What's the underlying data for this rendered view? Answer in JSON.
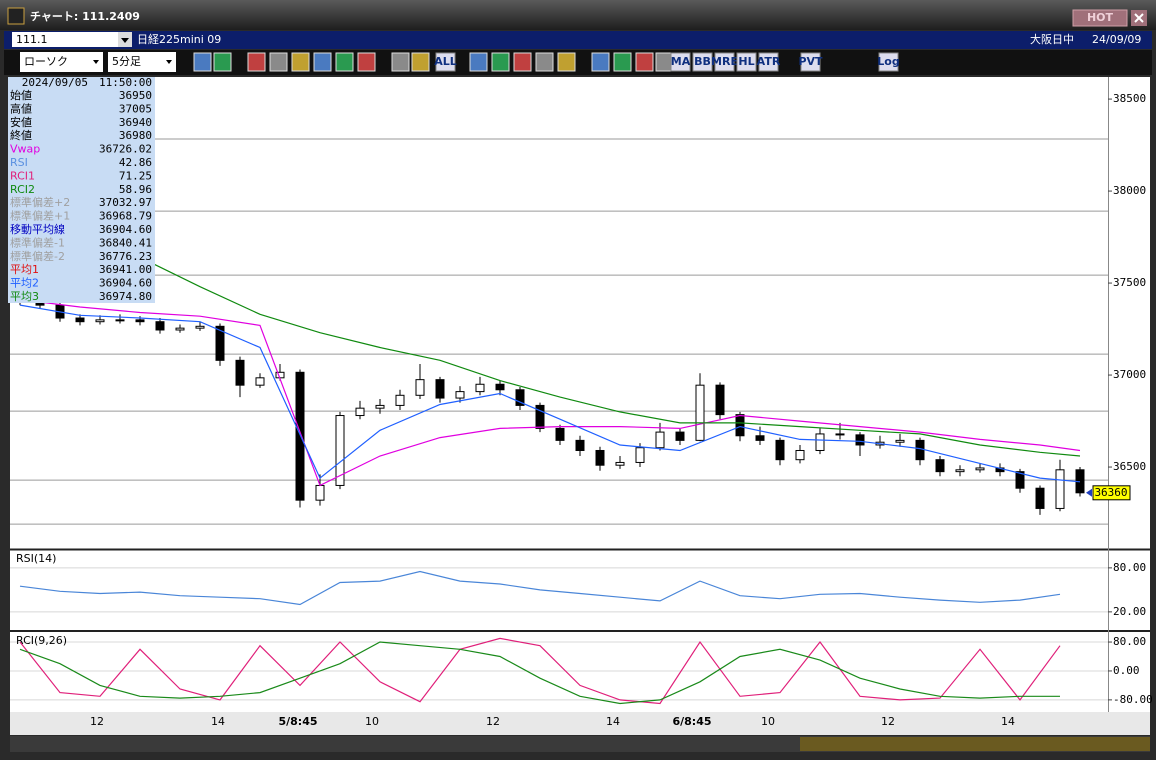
{
  "window": {
    "title": "チャート: 111.2409",
    "hot": "HOT",
    "code": "111.1",
    "instrument": "日経225mini 09",
    "market": "大阪日中",
    "date": "24/09/09"
  },
  "toolbar": {
    "chart_kind": "ローソク",
    "interval": "5分足",
    "buttons": [
      "ALL",
      "MA",
      "BB",
      "MRE",
      "HL",
      "ATR",
      "PVT",
      "Log"
    ]
  },
  "info": {
    "datetime": "2024/09/05　11:50:00",
    "rows": [
      {
        "label": "始値",
        "value": "36950",
        "color": "#000000"
      },
      {
        "label": "高値",
        "value": "37005",
        "color": "#000000"
      },
      {
        "label": "安値",
        "value": "36940",
        "color": "#000000"
      },
      {
        "label": "終値",
        "value": "36980",
        "color": "#000000"
      },
      {
        "label": "Vwap",
        "value": "36726.02",
        "color": "#e000e0"
      },
      {
        "label": "RSI",
        "value": "42.86",
        "color": "#5a90e0"
      },
      {
        "label": "RCI1",
        "value": "71.25",
        "color": "#e0207a"
      },
      {
        "label": "RCI2",
        "value": "58.96",
        "color": "#108a10"
      },
      {
        "label": "標準偏差+2",
        "value": "37032.97",
        "color": "#a0a0a0"
      },
      {
        "label": "標準偏差+1",
        "value": "36968.79",
        "color": "#a0a0a0"
      },
      {
        "label": "移動平均線",
        "value": "36904.60",
        "color": "#0000c0"
      },
      {
        "label": "標準偏差-1",
        "value": "36840.41",
        "color": "#a0a0a0"
      },
      {
        "label": "標準偏差-2",
        "value": "36776.23",
        "color": "#a0a0a0"
      },
      {
        "label": "平均1",
        "value": "36941.00",
        "color": "#e01010"
      },
      {
        "label": "平均2",
        "value": "36904.60",
        "color": "#2060ff"
      },
      {
        "label": "平均3",
        "value": "36974.80",
        "color": "#108a10"
      }
    ]
  },
  "chart_data": [
    {
      "type": "candlestick",
      "up_color": "#ffffff",
      "down_color": "#000000",
      "grid": false,
      "x": [
        0,
        1,
        2,
        3,
        4,
        5,
        6,
        7,
        8,
        9,
        10,
        11,
        12,
        13,
        14,
        15,
        16,
        17,
        18,
        19,
        20,
        21,
        22,
        23,
        24,
        25,
        26,
        27,
        28,
        29,
        30,
        31,
        32,
        33,
        34,
        35,
        36,
        37,
        38,
        39,
        40,
        41,
        42,
        43,
        44,
        45,
        46,
        47,
        48,
        49,
        50,
        51,
        52,
        53
      ],
      "open": [
        37420,
        37408,
        37380,
        37310,
        37290,
        37300,
        37300,
        37290,
        37245,
        37255,
        37265,
        37080,
        36945,
        36985,
        37015,
        36320,
        36400,
        36780,
        36820,
        36835,
        36890,
        36975,
        36875,
        36910,
        36950,
        36920,
        36835,
        36710,
        36645,
        36590,
        36510,
        36525,
        36605,
        36690,
        36645,
        36945,
        36785,
        36670,
        36645,
        36540,
        36590,
        36680,
        36675,
        36620,
        36635,
        36645,
        36540,
        36475,
        36485,
        36495,
        36475,
        36385,
        36275,
        36485
      ],
      "high": [
        37440,
        37425,
        37395,
        37330,
        37325,
        37330,
        37320,
        37310,
        37275,
        37290,
        37280,
        37100,
        37010,
        37060,
        37030,
        36460,
        36800,
        36860,
        36870,
        36920,
        37060,
        36990,
        36940,
        36990,
        36970,
        36935,
        36850,
        36730,
        36670,
        36610,
        36560,
        36630,
        36740,
        36710,
        37010,
        36960,
        36800,
        36720,
        36660,
        36620,
        36710,
        36740,
        36690,
        36670,
        36680,
        36660,
        36560,
        36510,
        36520,
        36520,
        36490,
        36400,
        36540,
        36500
      ],
      "low": [
        37380,
        37360,
        37290,
        37270,
        37275,
        37280,
        37270,
        37225,
        37230,
        37240,
        37050,
        36880,
        36930,
        36970,
        36280,
        36290,
        36380,
        36760,
        36790,
        36810,
        36870,
        36850,
        36850,
        36890,
        36890,
        36810,
        36690,
        36620,
        36560,
        36480,
        36490,
        36500,
        36590,
        36620,
        36640,
        36760,
        36640,
        36620,
        36510,
        36520,
        36570,
        36650,
        36560,
        36600,
        36610,
        36510,
        36450,
        36450,
        36470,
        36450,
        36360,
        36240,
        36260,
        36340
      ],
      "close": [
        37408,
        37380,
        37310,
        37290,
        37300,
        37300,
        37290,
        37245,
        37255,
        37265,
        37080,
        36945,
        36985,
        37015,
        36320,
        36400,
        36780,
        36820,
        36835,
        36890,
        36975,
        36875,
        36910,
        36950,
        36920,
        36835,
        36710,
        36645,
        36590,
        36510,
        36525,
        36605,
        36690,
        36645,
        36945,
        36785,
        36670,
        36645,
        36540,
        36590,
        36680,
        36675,
        36620,
        36635,
        36645,
        36540,
        36475,
        36485,
        36495,
        36475,
        36385,
        36275,
        36485,
        36360
      ],
      "series": [
        {
          "color": "#e000e0",
          "x": [
            0,
            3,
            6,
            9,
            12,
            15,
            18,
            21,
            24,
            27,
            30,
            33,
            36,
            39,
            42,
            45,
            48,
            51,
            53
          ],
          "values": [
            37410,
            37370,
            37340,
            37320,
            37270,
            36400,
            36560,
            36660,
            36710,
            36720,
            36720,
            36710,
            36780,
            36750,
            36720,
            36690,
            36650,
            36620,
            36590
          ]
        },
        {
          "color": "#108a10",
          "x": [
            0,
            3,
            6,
            9,
            12,
            15,
            18,
            21,
            24,
            27,
            30,
            33,
            36,
            39,
            42,
            45,
            48,
            51,
            53
          ],
          "values": [
            37950,
            37820,
            37640,
            37480,
            37330,
            37230,
            37150,
            37080,
            36970,
            36880,
            36800,
            36740,
            36740,
            36720,
            36700,
            36680,
            36620,
            36580,
            36560
          ]
        },
        {
          "color": "#2060ff",
          "x": [
            0,
            3,
            6,
            9,
            12,
            15,
            18,
            21,
            24,
            27,
            30,
            33,
            36,
            39,
            42,
            45,
            48,
            51,
            53
          ],
          "values": [
            37380,
            37325,
            37310,
            37290,
            37150,
            36440,
            36700,
            36840,
            36900,
            36760,
            36620,
            36590,
            36720,
            36650,
            36640,
            36600,
            36520,
            36440,
            36420
          ]
        }
      ],
      "levels": [
        38283,
        37891,
        37543,
        37114,
        36804,
        36429,
        36190
      ],
      "last_price": 36360,
      "xlim": [
        -0.5,
        54.4
      ],
      "ylim": [
        36060,
        38620
      ],
      "yticks": [
        36500,
        37000,
        37500,
        38000,
        38500
      ],
      "xticks": [
        {
          "value": 3.85,
          "label": "12"
        },
        {
          "value": 9.9,
          "label": "14"
        },
        {
          "value": 13.9,
          "label": "5/8:45"
        },
        {
          "value": 17.6,
          "label": "10"
        },
        {
          "value": 23.65,
          "label": "12"
        },
        {
          "value": 29.65,
          "label": "14"
        },
        {
          "value": 33.6,
          "label": "6/8:45"
        },
        {
          "value": 37.4,
          "label": "10"
        },
        {
          "value": 43.4,
          "label": "12"
        },
        {
          "value": 49.4,
          "label": "14"
        }
      ]
    },
    {
      "type": "line",
      "title": "RSI(14)",
      "grid": true,
      "xlim": [
        -0.5,
        54.4
      ],
      "ylim": [
        -2,
        103
      ],
      "yticks": [
        {
          "value": 80,
          "label": "80.00"
        },
        {
          "value": 20,
          "label": "20.00"
        }
      ],
      "series": [
        {
          "color": "#4a86d8",
          "x": [
            0,
            2,
            4,
            6,
            8,
            10,
            12,
            14,
            16,
            18,
            20,
            22,
            24,
            26,
            28,
            30,
            32,
            34,
            36,
            38,
            40,
            42,
            44,
            46,
            48,
            50,
            52
          ],
          "values": [
            55,
            48,
            45,
            47,
            42,
            40,
            38,
            30,
            60,
            62,
            75,
            62,
            58,
            50,
            45,
            40,
            35,
            62,
            42,
            38,
            44,
            45,
            40,
            36,
            33,
            36,
            44
          ]
        }
      ]
    },
    {
      "type": "line",
      "title": "RCI(9,26)",
      "grid": true,
      "xlim": [
        -0.5,
        54.4
      ],
      "ylim": [
        -108,
        105
      ],
      "yticks": [
        {
          "value": 80,
          "label": "80.00"
        },
        {
          "value": 0,
          "label": "0.00"
        },
        {
          "value": -80,
          "label": "-80.00"
        }
      ],
      "series": [
        {
          "color": "#e0207a",
          "x": [
            0,
            2,
            4,
            6,
            8,
            10,
            12,
            14,
            16,
            18,
            20,
            22,
            24,
            26,
            28,
            30,
            32,
            34,
            36,
            38,
            40,
            42,
            44,
            46,
            48,
            50,
            52
          ],
          "values": [
            80,
            -60,
            -70,
            60,
            -50,
            -80,
            70,
            -40,
            80,
            -30,
            -85,
            60,
            90,
            70,
            -40,
            -80,
            -90,
            80,
            -70,
            -60,
            80,
            -70,
            -80,
            -75,
            60,
            -80,
            70
          ]
        },
        {
          "color": "#1a8a1a",
          "x": [
            0,
            2,
            4,
            6,
            8,
            10,
            12,
            14,
            16,
            18,
            20,
            22,
            24,
            26,
            28,
            30,
            32,
            34,
            36,
            38,
            40,
            42,
            44,
            46,
            48,
            50,
            52
          ],
          "values": [
            60,
            20,
            -40,
            -70,
            -75,
            -70,
            -60,
            -20,
            20,
            80,
            70,
            60,
            40,
            -20,
            -70,
            -90,
            -80,
            -30,
            40,
            60,
            30,
            -20,
            -50,
            -70,
            -75,
            -70,
            -70
          ]
        }
      ]
    }
  ]
}
